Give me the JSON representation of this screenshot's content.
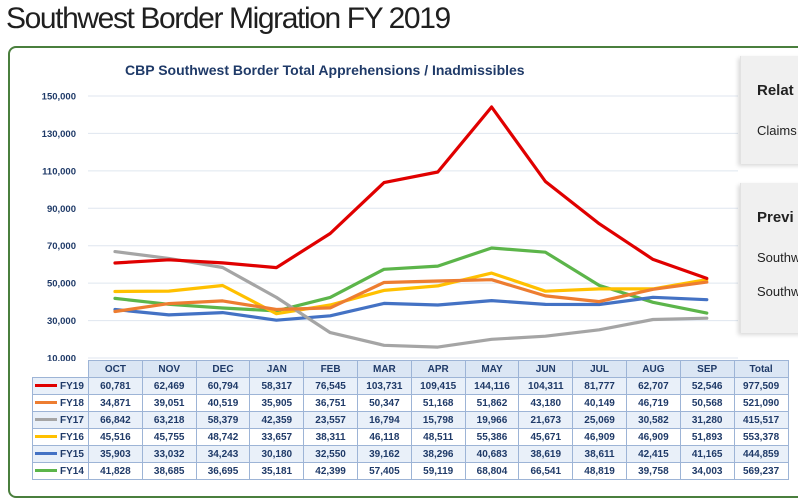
{
  "page": {
    "title": "Southwest Border Migration FY 2019"
  },
  "side_panels": [
    {
      "heading": "Relat",
      "lines": [
        "Claims"
      ]
    },
    {
      "heading": "Previ",
      "lines": [
        "Southw",
        "Southw"
      ]
    }
  ],
  "chart_data": {
    "type": "line",
    "title": "CBP Southwest Border Total Apprehensions / Inadmissibles",
    "xlabel": "",
    "ylabel": "",
    "ylim": [
      10000,
      150000
    ],
    "yticks": [
      10000,
      30000,
      50000,
      70000,
      90000,
      110000,
      130000,
      150000
    ],
    "ytick_labels": [
      "10,000",
      "30,000",
      "50,000",
      "70,000",
      "90,000",
      "110,000",
      "130,000",
      "150,000"
    ],
    "categories": [
      "OCT",
      "NOV",
      "DEC",
      "JAN",
      "FEB",
      "MAR",
      "APR",
      "MAY",
      "JUN",
      "JUL",
      "AUG",
      "SEP"
    ],
    "total_label": "Total",
    "grid": true,
    "legend": "table-below",
    "series": [
      {
        "name": "FY19",
        "color": "#e00000",
        "values": [
          60781,
          62469,
          60794,
          58317,
          76545,
          103731,
          109415,
          144116,
          104311,
          81777,
          62707,
          52546
        ],
        "labels": [
          "60,781",
          "62,469",
          "60,794",
          "58,317",
          "76,545",
          "103,731",
          "109,415",
          "144,116",
          "104,311",
          "81,777",
          "62,707",
          "52,546"
        ],
        "total": "977,509"
      },
      {
        "name": "FY18",
        "color": "#ed7d31",
        "values": [
          34871,
          39051,
          40519,
          35905,
          36751,
          50347,
          51168,
          51862,
          43180,
          40149,
          46719,
          50568
        ],
        "labels": [
          "34,871",
          "39,051",
          "40,519",
          "35,905",
          "36,751",
          "50,347",
          "51,168",
          "51,862",
          "43,180",
          "40,149",
          "46,719",
          "50,568"
        ],
        "total": "521,090"
      },
      {
        "name": "FY17",
        "color": "#a5a5a5",
        "values": [
          66842,
          63218,
          58379,
          42359,
          23557,
          16794,
          15798,
          19966,
          21673,
          25069,
          30582,
          31280
        ],
        "labels": [
          "66,842",
          "63,218",
          "58,379",
          "42,359",
          "23,557",
          "16,794",
          "15,798",
          "19,966",
          "21,673",
          "25,069",
          "30,582",
          "31,280"
        ],
        "total": "415,517"
      },
      {
        "name": "FY16",
        "color": "#ffc000",
        "values": [
          45516,
          45755,
          48742,
          33657,
          38311,
          46118,
          48511,
          55386,
          45671,
          46909,
          46909,
          51893
        ],
        "labels": [
          "45,516",
          "45,755",
          "48,742",
          "33,657",
          "38,311",
          "46,118",
          "48,511",
          "55,386",
          "45,671",
          "46,909",
          "46,909",
          "51,893"
        ],
        "total": "553,378"
      },
      {
        "name": "FY15",
        "color": "#4472c4",
        "values": [
          35903,
          33032,
          34243,
          30180,
          32550,
          39162,
          38296,
          40683,
          38619,
          38611,
          42415,
          41165
        ],
        "labels": [
          "35,903",
          "33,032",
          "34,243",
          "30,180",
          "32,550",
          "39,162",
          "38,296",
          "40,683",
          "38,619",
          "38,611",
          "42,415",
          "41,165"
        ],
        "total": "444,859"
      },
      {
        "name": "FY14",
        "color": "#5cb54a",
        "values": [
          41828,
          38685,
          36695,
          35181,
          42399,
          57405,
          59119,
          68804,
          66541,
          48819,
          39758,
          34003
        ],
        "labels": [
          "41,828",
          "38,685",
          "36,695",
          "35,181",
          "42,399",
          "57,405",
          "59,119",
          "68,804",
          "66,541",
          "48,819",
          "39,758",
          "34,003"
        ],
        "total": "569,237"
      }
    ]
  }
}
